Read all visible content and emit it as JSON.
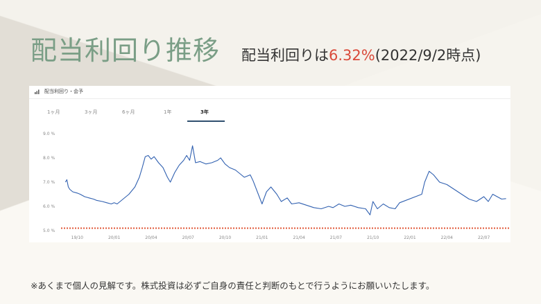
{
  "page": {
    "title": "配当利回り推移",
    "subtitle_prefix": "配当利回りは",
    "subtitle_value": "6.32%",
    "subtitle_suffix": "(2022/9/2時点)",
    "footnote": "※あくまで個人の見解です。株式投資は必ずご自身の責任と判断のもとで行うようにお願いいたします。"
  },
  "panel": {
    "title": "配当利回り・会予",
    "tabs": [
      {
        "label": "1ヶ月",
        "active": false
      },
      {
        "label": "3ヶ月",
        "active": false
      },
      {
        "label": "6ヶ月",
        "active": false
      },
      {
        "label": "1年",
        "active": false
      },
      {
        "label": "3年",
        "active": true
      }
    ]
  },
  "colors": {
    "line": "#3060b0",
    "threshold": "#e05535",
    "title": "#7a9e86",
    "accent": "#d94a3a"
  },
  "chart_data": {
    "type": "line",
    "ylim": [
      5.0,
      9.0
    ],
    "yticks": [
      "9.0 %",
      "8.0 %",
      "7.0 %",
      "6.0 %",
      "5.0 %"
    ],
    "ytick_values": [
      9.0,
      8.0,
      7.0,
      6.0,
      5.0
    ],
    "xticks": [
      "19/10",
      "20/01",
      "20/04",
      "20/07",
      "20/10",
      "21/01",
      "21/04",
      "21/07",
      "21/10",
      "22/01",
      "22/04",
      "22/07"
    ],
    "xtick_values": [
      2019.75,
      2020.0,
      2020.25,
      2020.5,
      2020.75,
      2021.0,
      2021.25,
      2021.5,
      2021.75,
      2022.0,
      2022.25,
      2022.5
    ],
    "xlim": [
      2019.65,
      2022.68
    ],
    "threshold": 5.1,
    "grid": false,
    "series": [
      {
        "points": [
          [
            2019.67,
            7.0
          ],
          [
            2019.68,
            7.1
          ],
          [
            2019.69,
            6.8
          ],
          [
            2019.7,
            6.7
          ],
          [
            2019.72,
            6.6
          ],
          [
            2019.75,
            6.55
          ],
          [
            2019.77,
            6.5
          ],
          [
            2019.8,
            6.4
          ],
          [
            2019.83,
            6.35
          ],
          [
            2019.86,
            6.3
          ],
          [
            2019.88,
            6.25
          ],
          [
            2019.92,
            6.2
          ],
          [
            2019.95,
            6.15
          ],
          [
            2019.98,
            6.1
          ],
          [
            2020.0,
            6.15
          ],
          [
            2020.02,
            6.1
          ],
          [
            2020.1,
            6.5
          ],
          [
            2020.14,
            6.8
          ],
          [
            2020.17,
            7.2
          ],
          [
            2020.19,
            7.6
          ],
          [
            2020.21,
            8.05
          ],
          [
            2020.23,
            8.1
          ],
          [
            2020.25,
            7.95
          ],
          [
            2020.27,
            8.05
          ],
          [
            2020.3,
            7.8
          ],
          [
            2020.33,
            7.6
          ],
          [
            2020.36,
            7.2
          ],
          [
            2020.38,
            7.0
          ],
          [
            2020.41,
            7.4
          ],
          [
            2020.44,
            7.7
          ],
          [
            2020.47,
            7.9
          ],
          [
            2020.49,
            8.1
          ],
          [
            2020.51,
            7.9
          ],
          [
            2020.53,
            8.5
          ],
          [
            2020.55,
            7.8
          ],
          [
            2020.58,
            7.85
          ],
          [
            2020.62,
            7.75
          ],
          [
            2020.66,
            7.8
          ],
          [
            2020.7,
            7.9
          ],
          [
            2020.72,
            8.0
          ],
          [
            2020.75,
            7.75
          ],
          [
            2020.78,
            7.6
          ],
          [
            2020.82,
            7.5
          ],
          [
            2020.86,
            7.3
          ],
          [
            2020.88,
            7.2
          ],
          [
            2020.92,
            7.3
          ],
          [
            2020.94,
            7.05
          ],
          [
            2021.0,
            6.1
          ],
          [
            2021.03,
            6.6
          ],
          [
            2021.06,
            6.8
          ],
          [
            2021.1,
            6.5
          ],
          [
            2021.13,
            6.2
          ],
          [
            2021.17,
            6.35
          ],
          [
            2021.2,
            6.1
          ],
          [
            2021.25,
            6.15
          ],
          [
            2021.3,
            6.05
          ],
          [
            2021.35,
            5.95
          ],
          [
            2021.4,
            5.9
          ],
          [
            2021.45,
            6.0
          ],
          [
            2021.48,
            5.95
          ],
          [
            2021.52,
            6.1
          ],
          [
            2021.56,
            6.0
          ],
          [
            2021.6,
            6.05
          ],
          [
            2021.65,
            5.95
          ],
          [
            2021.7,
            5.9
          ],
          [
            2021.73,
            5.65
          ],
          [
            2021.75,
            6.2
          ],
          [
            2021.78,
            5.9
          ],
          [
            2021.82,
            6.1
          ],
          [
            2021.86,
            5.95
          ],
          [
            2021.9,
            5.9
          ],
          [
            2021.93,
            6.15
          ],
          [
            2022.08,
            6.5
          ],
          [
            2022.1,
            7.0
          ],
          [
            2022.13,
            7.45
          ],
          [
            2022.16,
            7.3
          ],
          [
            2022.2,
            7.0
          ],
          [
            2022.25,
            6.9
          ],
          [
            2022.3,
            6.7
          ],
          [
            2022.35,
            6.5
          ],
          [
            2022.4,
            6.3
          ],
          [
            2022.45,
            6.2
          ],
          [
            2022.5,
            6.4
          ],
          [
            2022.53,
            6.2
          ],
          [
            2022.56,
            6.5
          ],
          [
            2022.59,
            6.4
          ],
          [
            2022.62,
            6.3
          ],
          [
            2022.65,
            6.32
          ]
        ]
      }
    ]
  }
}
